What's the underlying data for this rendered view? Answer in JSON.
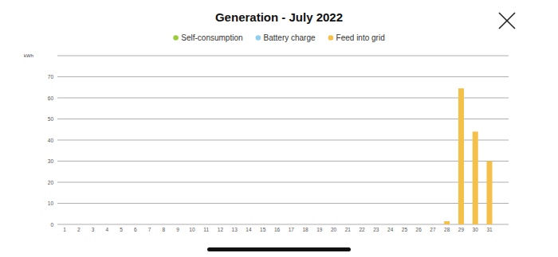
{
  "chart_data": {
    "type": "bar",
    "title": "Generation - July 2022",
    "y_label": "kWh",
    "categories": [
      "1",
      "2",
      "3",
      "4",
      "5",
      "6",
      "7",
      "8",
      "9",
      "10",
      "11",
      "12",
      "13",
      "14",
      "15",
      "16",
      "17",
      "18",
      "19",
      "20",
      "21",
      "22",
      "23",
      "24",
      "25",
      "26",
      "27",
      "28",
      "29",
      "30",
      "31"
    ],
    "series": [
      {
        "name": "Self-consumption",
        "color": "#9ccc3c",
        "values": [
          0,
          0,
          0,
          0,
          0,
          0,
          0,
          0,
          0,
          0,
          0,
          0,
          0,
          0,
          0,
          0,
          0,
          0,
          0,
          0,
          0,
          0,
          0,
          0,
          0,
          0,
          0,
          0,
          0,
          0,
          0
        ]
      },
      {
        "name": "Battery charge",
        "color": "#8fd0ef",
        "values": [
          0,
          0,
          0,
          0,
          0,
          0,
          0,
          0,
          0,
          0,
          0,
          0,
          0,
          0,
          0,
          0,
          0,
          0,
          0,
          0,
          0,
          0,
          0,
          0,
          0,
          0,
          0,
          0,
          0,
          0,
          0
        ]
      },
      {
        "name": "Feed into grid",
        "color": "#f5c04a",
        "values": [
          0,
          0,
          0,
          0,
          0,
          0,
          0,
          0,
          0,
          0,
          0,
          0,
          0,
          0,
          0,
          0,
          0,
          0,
          0,
          0,
          0,
          0,
          0,
          0,
          0,
          0,
          0,
          1.5,
          64.5,
          44,
          30
        ]
      }
    ],
    "stacked": true,
    "ylim": [
      0,
      80
    ],
    "yticks": [
      0,
      10,
      20,
      30,
      40,
      50,
      60,
      70
    ],
    "grid": true,
    "legend": "top"
  }
}
